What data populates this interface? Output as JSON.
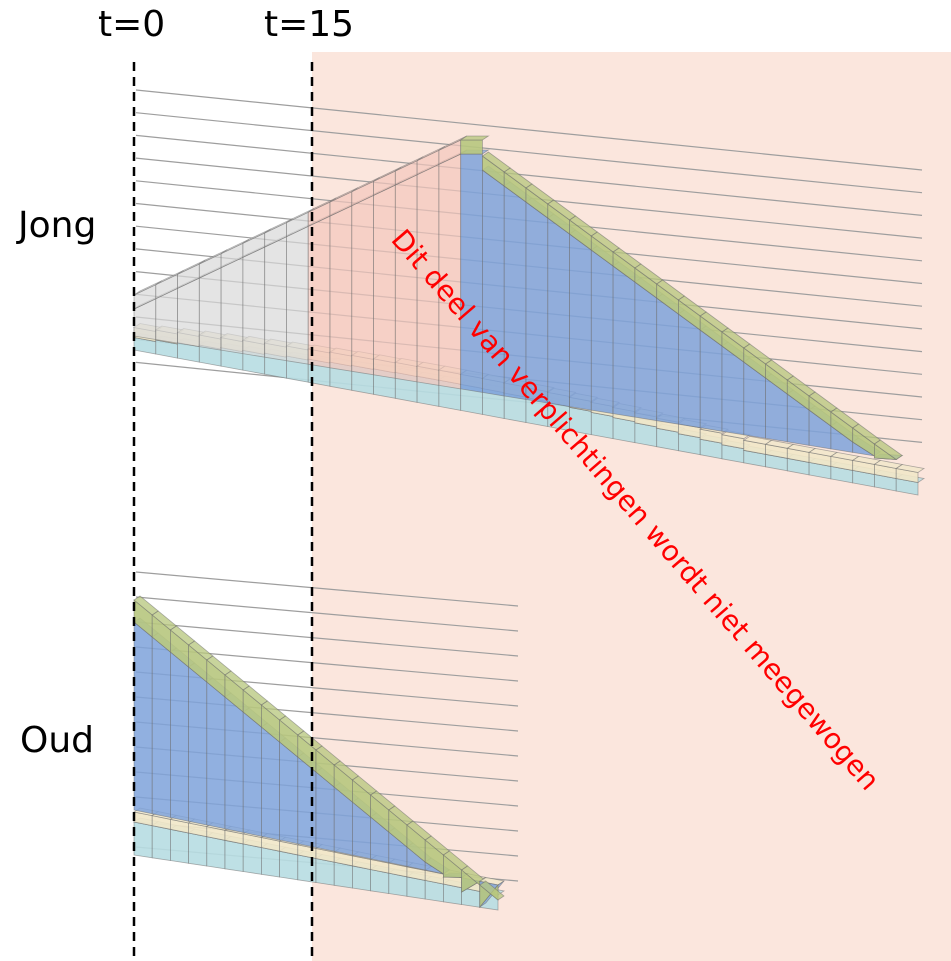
{
  "labels": {
    "t0": "t=0",
    "t15": "t=15",
    "young": "Jong",
    "old": "Oud",
    "annotation": "Dit deel van verplichtingen wordt niet meegewogen"
  },
  "colors": {
    "excluded_region": "#fbe6dd",
    "annotation_text": "#ff0000",
    "label_text": "#000000",
    "guide_line": "#000000",
    "grid_line": "#9e9e9e",
    "bar_gray": "#d9d9d9",
    "bar_pink": "#f4c6bc",
    "bar_blue": "#7ea2da",
    "bar_green": "#b7c77e",
    "bar_cream": "#f1e7c8",
    "bar_cyan": "#b7dde2"
  },
  "chart_data": [
    {
      "name": "Jong",
      "type": "bar",
      "bar_count": 36,
      "peak_index": 15,
      "series": [
        {
          "name": "",
          "role": "upper-accrual"
        },
        {
          "name": "",
          "role": "upper-cap"
        },
        {
          "name": "",
          "role": "lower-band"
        },
        {
          "name": "",
          "role": "lower-base"
        }
      ]
    },
    {
      "name": "Oud",
      "type": "bar",
      "bar_count": 20,
      "series": [
        {
          "name": "",
          "role": "upper-accrual"
        },
        {
          "name": "",
          "role": "upper-cap"
        },
        {
          "name": "",
          "role": "lower-band"
        },
        {
          "name": "",
          "role": "lower-base"
        }
      ]
    }
  ]
}
